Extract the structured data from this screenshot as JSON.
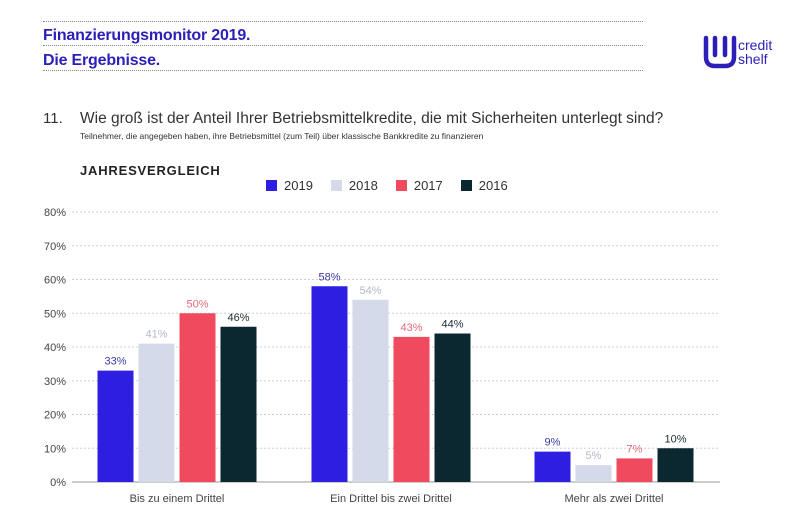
{
  "header": {
    "title_line1": "Finanzierungsmonitor 2019.",
    "title_line2": "Die Ergebnisse."
  },
  "logo": {
    "icon": "creditshelf-logo-icon",
    "text_line1": "credit",
    "text_line2": "shelf"
  },
  "question": {
    "number": "11.",
    "text": "Wie groß ist der Anteil Ihrer Betriebsmittelkredite, die mit Sicherheiten unterlegt sind?",
    "subtext": "Teilnehmer, die angegeben haben, ihre Betriebsmittel (zum Teil) über klassische Bankkredite zu finanzieren"
  },
  "section_label": "JAHRESVERGLEICH",
  "colors": {
    "brand": "#2b1fb8",
    "s2019": "#2e1fe0",
    "s2018": "#d5daea",
    "s2017": "#f04a5e",
    "s2016": "#0b2730"
  },
  "chart_data": {
    "type": "bar",
    "title": "JAHRESVERGLEICH",
    "xlabel": "",
    "ylabel": "",
    "ylim": [
      0,
      80
    ],
    "yticks": [
      "0%",
      "10%",
      "20%",
      "30%",
      "40%",
      "50%",
      "60%",
      "70%",
      "80%"
    ],
    "categories": [
      "Bis zu einem Drittel",
      "Ein Drittel bis zwei Drittel",
      "Mehr als zwei Drittel"
    ],
    "series": [
      {
        "name": "2019",
        "color": "#2e1fe0",
        "label_color": "#3a3aa8",
        "values": [
          33,
          58,
          9
        ],
        "labels": [
          "33%",
          "58%",
          "9%"
        ]
      },
      {
        "name": "2018",
        "color": "#d5daea",
        "label_color": "#b3b8c8",
        "values": [
          41,
          54,
          5
        ],
        "labels": [
          "41%",
          "54%",
          "5%"
        ]
      },
      {
        "name": "2017",
        "color": "#f04a5e",
        "label_color": "#e56a78",
        "values": [
          50,
          43,
          7
        ],
        "labels": [
          "50%",
          "43%",
          "7%"
        ]
      },
      {
        "name": "2016",
        "color": "#0b2730",
        "label_color": "#1c2c33",
        "values": [
          46,
          44,
          10
        ],
        "labels": [
          "46%",
          "44%",
          "10%"
        ]
      }
    ],
    "legend_position": "top",
    "grid": true
  }
}
